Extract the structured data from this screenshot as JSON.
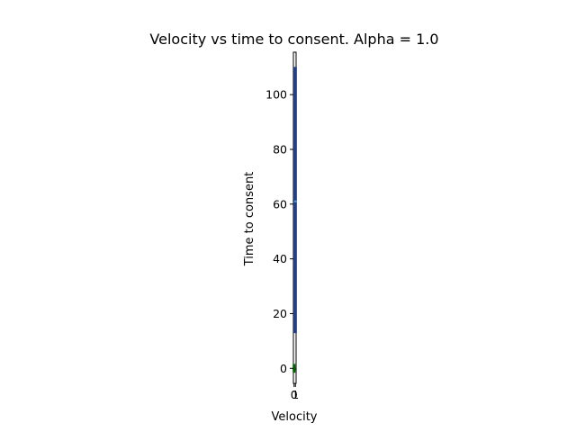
{
  "chart_data": {
    "type": "box",
    "title": "Velocity vs time to consent. Alpha = 1.0",
    "xlabel": "Velocity",
    "ylabel": "Time to consent",
    "x_ticks": [
      "0",
      "1"
    ],
    "y_ticks": [
      0,
      20,
      40,
      60,
      80,
      100
    ],
    "ylim": [
      -5.5,
      115.5
    ],
    "xlim": [
      -0.5,
      1.5
    ],
    "grid": false,
    "legend": "none",
    "boxes": [
      {
        "x": 0,
        "min": 0,
        "q1": 0,
        "median": 0,
        "q3": 0,
        "max": 0,
        "color": "#006400"
      },
      {
        "x": 1,
        "min": 13,
        "q1": 13,
        "median": 61,
        "q3": 110,
        "max": 110,
        "color": "#1f3f8f"
      }
    ]
  }
}
